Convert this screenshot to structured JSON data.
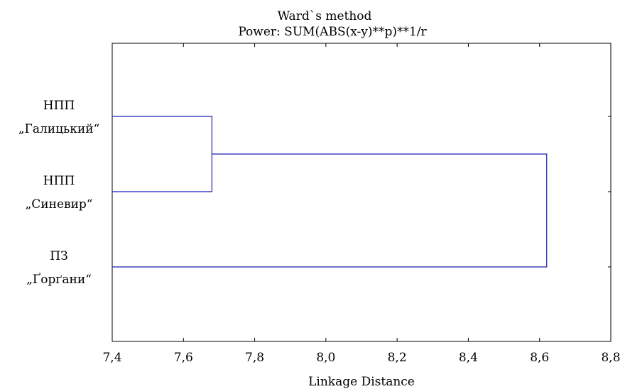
{
  "chart_data": {
    "type": "dendrogram",
    "title": "Ward`s method",
    "subtitle": "Power: SUM(ABS(x-y)**p)**1/r",
    "xlabel": "Linkage Distance",
    "xlim": [
      7.4,
      8.8
    ],
    "x_ticks": [
      7.4,
      7.6,
      7.8,
      8.0,
      8.2,
      8.4,
      8.6,
      8.8
    ],
    "x_tick_labels": [
      "7,4",
      "7,6",
      "7,8",
      "8,0",
      "8,2",
      "8,4",
      "8,6",
      "8,8"
    ],
    "leaves": [
      {
        "line1": "НПП",
        "line2": "„Галицький“"
      },
      {
        "line1": "НПП",
        "line2": "„Синевир“"
      },
      {
        "line1": "ПЗ",
        "line2": "„Ґорґани“"
      }
    ],
    "merges": [
      {
        "members": [
          0,
          1
        ],
        "distance": 7.68
      },
      {
        "members": [
          2,
          3
        ],
        "distance": 8.62
      }
    ],
    "line_color": "#1f1fb4",
    "grid": false
  }
}
